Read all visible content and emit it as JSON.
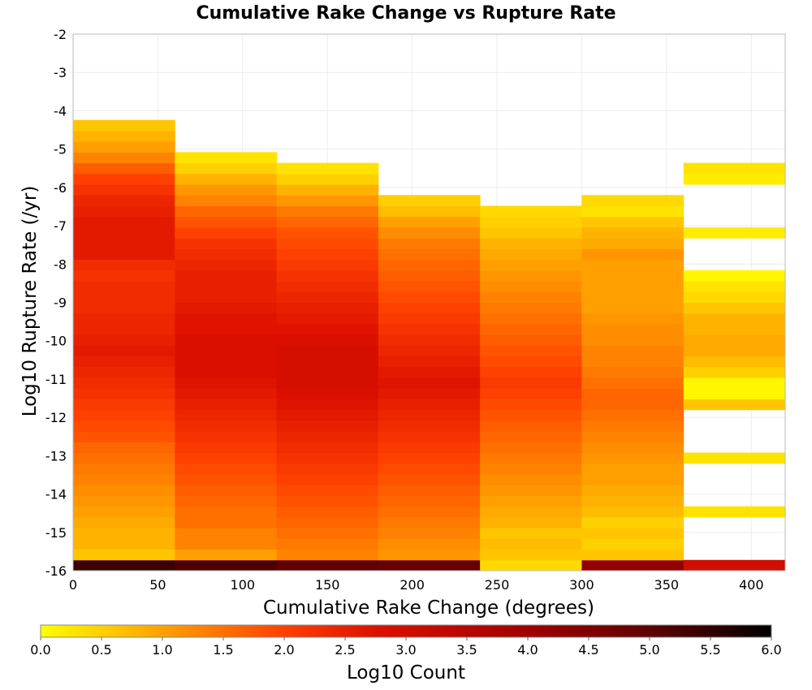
{
  "chart_data": {
    "type": "heatmap",
    "title": "Cumulative Rake Change vs Rupture Rate",
    "xlabel": "Cumulative Rake Change (degrees)",
    "ylabel": "Log10 Rupture Rate (/yr)",
    "xlim": [
      0,
      420
    ],
    "ylim": [
      -16,
      -2
    ],
    "x_ticks": [
      "0",
      "50",
      "100",
      "150",
      "200",
      "250",
      "300",
      "350",
      "400"
    ],
    "y_ticks": [
      "-2",
      "-3",
      "-4",
      "-5",
      "-6",
      "-7",
      "-8",
      "-9",
      "-10",
      "-11",
      "-12",
      "-13",
      "-14",
      "-15",
      "-16"
    ],
    "x_bin_edges": [
      0,
      60,
      120,
      180,
      240,
      300,
      360,
      420
    ],
    "y_bin_start": -16,
    "y_bin_width": 0.28,
    "grid": true,
    "colorbar": {
      "label": "Log10 Count",
      "min": 0.0,
      "max": 6.0,
      "ticks": [
        "0.0",
        "0.5",
        "1.0",
        "1.5",
        "2.0",
        "2.5",
        "3.0",
        "3.5",
        "4.0",
        "4.5",
        "5.0",
        "5.5",
        "6.0"
      ],
      "colors": [
        "#ffff00",
        "#ffa000",
        "#ff4000",
        "#dd1000",
        "#a00000",
        "#600000",
        "#000000"
      ]
    },
    "column_notes": "each column lists Log10 Count per rupture-rate bin from Log10 rate -16 upward; null = empty bin",
    "columns": [
      {
        "x_range": [
          0,
          60
        ],
        "values": [
          5.4,
          0.6,
          0.8,
          0.8,
          0.9,
          1.0,
          1.1,
          1.2,
          1.3,
          1.4,
          1.5,
          1.6,
          1.8,
          1.9,
          2.0,
          2.1,
          2.2,
          2.3,
          2.4,
          2.5,
          2.6,
          2.5,
          2.4,
          2.4,
          2.3,
          2.3,
          2.3,
          2.2,
          2.3,
          2.6,
          2.6,
          2.6,
          2.6,
          2.5,
          2.4,
          2.2,
          2.0,
          1.7,
          1.3,
          1.0,
          0.8,
          0.6
        ]
      },
      {
        "x_range": [
          60,
          120
        ],
        "values": [
          5.2,
          1.0,
          1.3,
          1.3,
          1.5,
          1.5,
          1.6,
          1.7,
          1.8,
          1.9,
          2.0,
          2.1,
          2.2,
          2.3,
          2.4,
          2.5,
          2.6,
          2.7,
          2.8,
          2.8,
          2.8,
          2.8,
          2.7,
          2.7,
          2.6,
          2.5,
          2.5,
          2.5,
          2.4,
          2.3,
          2.2,
          2.0,
          1.8,
          1.6,
          1.3,
          1.1,
          0.8,
          0.5,
          0.3,
          null,
          null,
          null
        ]
      },
      {
        "x_range": [
          120,
          180
        ],
        "values": [
          5.0,
          1.3,
          1.4,
          1.5,
          1.6,
          1.7,
          1.8,
          1.9,
          2.0,
          2.1,
          2.2,
          2.3,
          2.4,
          2.5,
          2.6,
          2.7,
          2.8,
          2.9,
          2.9,
          2.9,
          2.9,
          2.8,
          2.7,
          2.6,
          2.5,
          2.4,
          2.3,
          2.2,
          2.1,
          2.0,
          1.9,
          1.8,
          1.6,
          1.4,
          1.1,
          0.8,
          0.5,
          0.3,
          null,
          null,
          null,
          null
        ]
      },
      {
        "x_range": [
          180,
          240
        ],
        "values": [
          4.9,
          1.1,
          1.2,
          1.3,
          1.4,
          1.5,
          1.6,
          1.7,
          1.8,
          1.9,
          2.0,
          2.1,
          2.2,
          2.3,
          2.4,
          2.5,
          2.6,
          2.7,
          2.6,
          2.5,
          2.4,
          2.3,
          2.2,
          2.1,
          2.0,
          1.9,
          1.8,
          1.7,
          1.6,
          1.5,
          1.4,
          1.2,
          1.0,
          0.7,
          0.5,
          null,
          null,
          null,
          null,
          null,
          null,
          null
        ]
      },
      {
        "x_range": [
          240,
          300
        ],
        "values": [
          0.4,
          0.6,
          0.7,
          0.6,
          0.8,
          0.9,
          1.0,
          1.1,
          1.2,
          1.3,
          1.4,
          1.5,
          1.6,
          1.7,
          1.8,
          1.9,
          2.0,
          2.1,
          2.0,
          1.9,
          1.8,
          1.7,
          1.6,
          1.5,
          1.4,
          1.3,
          1.2,
          1.1,
          1.0,
          0.9,
          0.8,
          0.6,
          0.5,
          0.4,
          null,
          null,
          null,
          null,
          null,
          null,
          null,
          null
        ]
      },
      {
        "x_range": [
          300,
          360
        ],
        "values": [
          4.2,
          0.6,
          0.5,
          0.6,
          0.5,
          0.7,
          0.8,
          0.9,
          1.0,
          1.0,
          1.1,
          1.2,
          1.3,
          1.4,
          1.5,
          1.6,
          1.6,
          1.5,
          1.4,
          1.3,
          1.3,
          1.2,
          1.2,
          1.1,
          1.0,
          1.0,
          1.0,
          1.0,
          1.0,
          1.1,
          0.9,
          0.8,
          0.6,
          0.3,
          0.4,
          null,
          null,
          null,
          null,
          null,
          null,
          null
        ]
      },
      {
        "x_range": [
          360,
          420
        ],
        "values": [
          3.0,
          null,
          null,
          null,
          null,
          0.3,
          null,
          null,
          null,
          null,
          0.3,
          null,
          null,
          null,
          null,
          0.6,
          0.1,
          0.1,
          0.5,
          0.7,
          0.9,
          0.9,
          0.8,
          0.8,
          0.6,
          0.4,
          0.3,
          0.1,
          null,
          null,
          null,
          0.2,
          null,
          null,
          null,
          null,
          0.2,
          0.3,
          null,
          null,
          null,
          null
        ]
      }
    ]
  }
}
